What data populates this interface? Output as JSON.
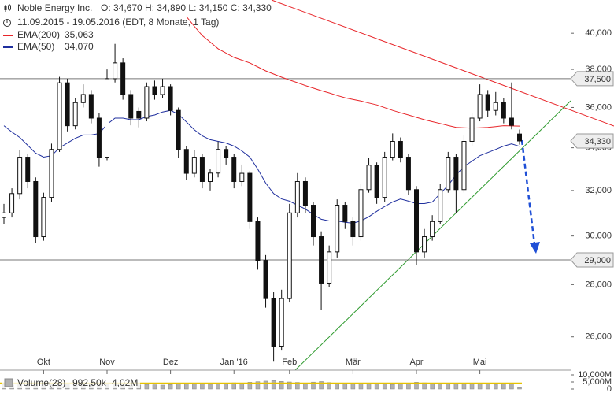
{
  "chart_data": {
    "type": "candlestick",
    "title": "Noble Energy Inc.",
    "quote": "O: 34,670  H: 34,890  L: 34,150  C: 34,330",
    "period": "11.09.2015 - 19.05.2016 (EDT, 8 Monate, 1 Tag)",
    "categories": [
      null,
      null,
      null,
      null,
      null,
      "Okt",
      null,
      null,
      null,
      null,
      null,
      null,
      null,
      "Nov",
      null,
      null,
      null,
      null,
      null,
      null,
      null,
      "Dez",
      null,
      null,
      null,
      null,
      null,
      null,
      null,
      "Jan '16",
      null,
      null,
      null,
      null,
      null,
      null,
      "Feb",
      null,
      null,
      null,
      null,
      null,
      null,
      null,
      "Mär",
      null,
      null,
      null,
      null,
      null,
      null,
      null,
      "Apr",
      null,
      null,
      null,
      null,
      null,
      null,
      null,
      "Mai",
      null,
      null,
      null,
      null,
      null
    ],
    "open": [
      30800,
      31000,
      31860,
      33550,
      32410,
      29970,
      31690,
      33920,
      37280,
      35080,
      36250,
      36670,
      35460,
      33550,
      37500,
      38350,
      36670,
      35800,
      35460,
      37080,
      36670,
      37080,
      35850,
      33920,
      32790,
      33550,
      32410,
      32800,
      33920,
      33550,
      32410,
      32790,
      30620,
      28980,
      27450,
      25660,
      27450,
      31000,
      32410,
      31340,
      29970,
      28060,
      29330,
      31340,
      30620,
      29970,
      32040,
      33170,
      31690,
      33550,
      34310,
      33550,
      32040,
      29330,
      29970,
      30620,
      32040,
      33550,
      32040,
      34310,
      35460,
      36670,
      35850,
      36250,
      35460,
      34670
    ],
    "high": [
      31400,
      32100,
      33900,
      33700,
      32600,
      31900,
      34200,
      37600,
      37500,
      36500,
      37200,
      36900,
      35700,
      38000,
      39400,
      38600,
      36900,
      36000,
      37300,
      37400,
      37500,
      37200,
      36000,
      34100,
      33900,
      33700,
      33000,
      34300,
      34100,
      33700,
      33200,
      32900,
      30800,
      29200,
      27700,
      27800,
      31400,
      32800,
      32600,
      31500,
      30200,
      29600,
      31600,
      31500,
      30800,
      32300,
      33500,
      33300,
      33800,
      34700,
      34500,
      33700,
      32200,
      30300,
      30900,
      32300,
      33800,
      33700,
      34600,
      35700,
      37200,
      36900,
      36800,
      36500,
      37300,
      34890
    ],
    "low": [
      30500,
      30800,
      31600,
      32100,
      29700,
      29800,
      31500,
      33800,
      34800,
      34900,
      36000,
      35200,
      33100,
      33400,
      37300,
      36400,
      35100,
      35000,
      35300,
      36400,
      36500,
      35600,
      33500,
      32500,
      32600,
      32100,
      32000,
      32600,
      33200,
      32100,
      32200,
      30300,
      28600,
      27100,
      25100,
      25500,
      27300,
      30800,
      31000,
      29600,
      27000,
      27900,
      29100,
      30300,
      29600,
      29800,
      31900,
      31400,
      31500,
      33400,
      33300,
      31800,
      28800,
      29100,
      29800,
      30500,
      31900,
      31000,
      31900,
      34100,
      35300,
      35500,
      35600,
      35200,
      34900,
      34150
    ],
    "close": [
      31000,
      31860,
      33550,
      32410,
      29970,
      31690,
      33920,
      37280,
      35080,
      36250,
      36670,
      35460,
      33550,
      37500,
      38350,
      36670,
      35460,
      35460,
      37080,
      36670,
      37080,
      35850,
      33920,
      32790,
      33550,
      32410,
      32800,
      33920,
      33550,
      32410,
      32790,
      30620,
      28980,
      27450,
      25660,
      27450,
      31000,
      32410,
      31340,
      29970,
      28060,
      29330,
      31340,
      30620,
      29970,
      32040,
      33170,
      31690,
      33550,
      34310,
      33550,
      32040,
      29330,
      29970,
      30620,
      32040,
      33550,
      32040,
      34310,
      35460,
      36670,
      35850,
      36250,
      35460,
      35100,
      34330
    ],
    "series": [
      {
        "name": "EMA(200)",
        "color": "#e8262a",
        "last_label": "35,063",
        "values": [
          null,
          null,
          null,
          null,
          null,
          null,
          null,
          null,
          null,
          null,
          null,
          null,
          null,
          null,
          null,
          null,
          null,
          null,
          null,
          null,
          null,
          null,
          null,
          40960,
          40400,
          39870,
          39500,
          39130,
          38890,
          38650,
          38500,
          38350,
          38130,
          37920,
          37750,
          37580,
          37430,
          37290,
          37140,
          37000,
          36870,
          36750,
          36620,
          36500,
          36410,
          36330,
          36230,
          36130,
          35990,
          35850,
          35730,
          35620,
          35500,
          35380,
          35280,
          35190,
          35090,
          35000,
          34980,
          34960,
          34980,
          35000,
          35040,
          35080,
          35070,
          35063
        ]
      },
      {
        "name": "EMA(50)",
        "color": "#1f2f9e",
        "last_label": "34,070",
        "values": [
          35080,
          34770,
          34500,
          34120,
          33740,
          33550,
          33620,
          34000,
          34230,
          34460,
          34620,
          34620,
          34690,
          35150,
          35460,
          35460,
          35380,
          35380,
          35540,
          35620,
          35770,
          35850,
          35650,
          35270,
          34880,
          34580,
          34390,
          34310,
          34230,
          34080,
          33850,
          33550,
          32980,
          32340,
          31860,
          31620,
          31520,
          31340,
          31170,
          30930,
          30720,
          30650,
          30650,
          30590,
          30550,
          30650,
          30830,
          31070,
          31280,
          31480,
          31620,
          31520,
          31410,
          31410,
          31480,
          31860,
          32230,
          32720,
          33100,
          33360,
          33620,
          33770,
          33920,
          34080,
          34190,
          34070
        ]
      }
    ],
    "log_scale": true,
    "ylim": [
      24800,
      41930
    ],
    "yticks": [
      {
        "value": 26000,
        "label": "26,000"
      },
      {
        "value": 28000,
        "label": "28,000"
      },
      {
        "value": 30000,
        "label": "30,000"
      },
      {
        "value": 32000,
        "label": "32,000"
      },
      {
        "value": 34000,
        "label": "34,000"
      },
      {
        "value": 36000,
        "label": "36,000"
      },
      {
        "value": 38000,
        "label": "38,000"
      },
      {
        "value": 40000,
        "label": "40,000"
      }
    ],
    "hlines": [
      {
        "value": 37500,
        "label": "37,500"
      },
      {
        "value": 29000,
        "label": "29,000"
      }
    ],
    "price_marker": {
      "value": 34330,
      "label": "34,330"
    },
    "volume": {
      "name": "Volume(28)",
      "color": "#b0b0b0",
      "values": [
        3.2,
        2.9,
        3.6,
        3.1,
        4.5,
        3.8,
        3.3,
        4.0,
        3.5,
        2.8,
        3.0,
        3.4,
        4.2,
        3.9,
        3.6,
        3.1,
        2.7,
        2.9,
        3.3,
        3.0,
        2.8,
        3.2,
        3.9,
        4.1,
        3.5,
        3.7,
        3.4,
        3.8,
        3.6,
        4.4,
        4.0,
        4.8,
        5.2,
        5.6,
        6.0,
        5.4,
        5.0,
        4.7,
        4.3,
        4.9,
        5.3,
        4.6,
        4.1,
        3.8,
        4.2,
        4.0,
        3.7,
        3.9,
        3.5,
        3.3,
        3.6,
        4.0,
        4.8,
        4.4,
        4.1,
        3.9,
        3.6,
        4.2,
        4.0,
        3.8,
        3.5,
        3.7,
        3.4,
        3.6,
        3.9,
        0.9925
      ],
      "last_label": "992,50k",
      "average": {
        "value": 4.02,
        "label": "4,02M",
        "color": "#e6c200"
      },
      "ylim": [
        0,
        10
      ],
      "yticks": [
        {
          "value": 10,
          "label": "10,000M"
        },
        {
          "value": 5,
          "label": "5,000M"
        },
        0
      ]
    }
  }
}
